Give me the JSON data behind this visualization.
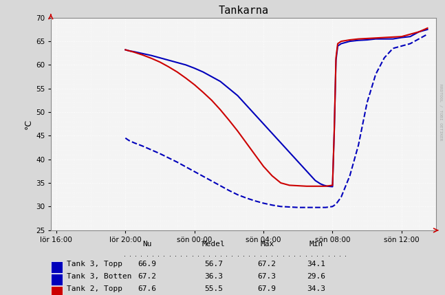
{
  "title": "Tankarna",
  "ylabel": "°C",
  "ylim": [
    25,
    70
  ],
  "yticks": [
    25,
    30,
    35,
    40,
    45,
    50,
    55,
    60,
    65,
    70
  ],
  "x_tick_labels": [
    "lör 16:00",
    "lör 20:00",
    "sön 00:00",
    "sön 04:00",
    "sön 08:00",
    "sön 12:00"
  ],
  "x_tick_positions": [
    0,
    4,
    8,
    12,
    16,
    20
  ],
  "xlim": [
    -0.3,
    22.0
  ],
  "background_color": "#d8d8d8",
  "plot_bg_color": "#f4f4f4",
  "grid_color": "#ffffff",
  "legend_entries": [
    {
      "label": "Tank 3, Topp",
      "nu": "66.9",
      "medel": "56.7",
      "max": "67.2",
      "min": "34.1",
      "color": "#0000bb",
      "style": "solid",
      "lw": 1.5
    },
    {
      "label": "Tank 3, Botten",
      "nu": "67.2",
      "medel": "36.3",
      "max": "67.3",
      "min": "29.6",
      "color": "#0000bb",
      "style": "dashed",
      "lw": 1.5
    },
    {
      "label": "Tank 2, Topp",
      "nu": "67.6",
      "medel": "55.5",
      "max": "67.9",
      "min": "34.3",
      "color": "#cc0000",
      "style": "solid",
      "lw": 1.5
    }
  ],
  "tank3_topp_x": [
    4.0,
    4.2,
    4.5,
    5.0,
    5.5,
    6.0,
    6.5,
    7.0,
    7.5,
    8.0,
    8.5,
    9.0,
    9.5,
    10.0,
    10.5,
    11.0,
    11.5,
    12.0,
    12.5,
    13.0,
    13.5,
    14.0,
    14.5,
    15.0,
    15.3,
    15.5,
    15.7,
    16.0,
    16.1,
    16.2,
    16.3,
    16.5,
    17.0,
    17.5,
    18.0,
    18.5,
    19.0,
    19.5,
    20.0,
    20.5,
    21.0,
    21.5
  ],
  "tank3_topp_y": [
    63.2,
    63.0,
    62.8,
    62.4,
    62.0,
    61.5,
    61.0,
    60.5,
    60.0,
    59.3,
    58.5,
    57.5,
    56.5,
    55.0,
    53.5,
    51.5,
    49.5,
    47.5,
    45.5,
    43.5,
    41.5,
    39.5,
    37.5,
    35.5,
    34.8,
    34.5,
    34.3,
    34.2,
    46.0,
    61.0,
    64.0,
    64.5,
    65.0,
    65.2,
    65.3,
    65.5,
    65.5,
    65.5,
    65.8,
    66.0,
    67.0,
    67.5
  ],
  "tank3_botten_x": [
    4.0,
    4.2,
    4.5,
    5.0,
    5.5,
    6.0,
    6.5,
    7.0,
    7.5,
    8.0,
    8.5,
    9.0,
    9.5,
    10.0,
    10.5,
    11.0,
    11.5,
    12.0,
    12.5,
    13.0,
    13.5,
    14.0,
    14.5,
    15.0,
    15.3,
    15.6,
    15.8,
    16.0,
    16.2,
    16.5,
    17.0,
    17.5,
    18.0,
    18.5,
    19.0,
    19.5,
    20.0,
    20.5,
    21.0,
    21.5
  ],
  "tank3_botten_y": [
    44.5,
    44.0,
    43.5,
    42.8,
    42.0,
    41.2,
    40.3,
    39.4,
    38.4,
    37.4,
    36.4,
    35.4,
    34.4,
    33.4,
    32.5,
    31.8,
    31.2,
    30.7,
    30.3,
    30.0,
    29.9,
    29.8,
    29.8,
    29.8,
    29.8,
    29.8,
    29.9,
    30.0,
    30.5,
    32.0,
    36.5,
    43.0,
    52.0,
    58.0,
    61.5,
    63.5,
    64.0,
    64.5,
    65.5,
    66.5
  ],
  "tank2_topp_x": [
    4.0,
    4.2,
    4.5,
    5.0,
    5.5,
    6.0,
    6.5,
    7.0,
    7.5,
    8.0,
    8.5,
    9.0,
    9.5,
    10.0,
    10.5,
    11.0,
    11.5,
    12.0,
    12.5,
    13.0,
    13.5,
    14.0,
    14.5,
    15.0,
    15.2,
    15.4,
    15.6,
    15.8,
    16.0,
    16.1,
    16.2,
    16.3,
    16.5,
    17.0,
    17.5,
    18.0,
    18.5,
    19.0,
    19.5,
    20.0,
    20.5,
    21.0,
    21.5
  ],
  "tank2_topp_y": [
    63.2,
    63.0,
    62.7,
    62.1,
    61.4,
    60.6,
    59.6,
    58.5,
    57.2,
    55.8,
    54.2,
    52.5,
    50.5,
    48.3,
    46.0,
    43.5,
    41.0,
    38.5,
    36.5,
    35.0,
    34.5,
    34.4,
    34.3,
    34.3,
    34.3,
    34.3,
    34.3,
    34.4,
    34.5,
    46.0,
    61.5,
    64.5,
    65.0,
    65.3,
    65.5,
    65.6,
    65.7,
    65.8,
    65.9,
    66.0,
    66.5,
    67.0,
    67.8
  ],
  "header_row": [
    "Nu",
    "Medel",
    "Max",
    "Min"
  ],
  "watermark": "RRDTOOL / TOBI OETIKER"
}
